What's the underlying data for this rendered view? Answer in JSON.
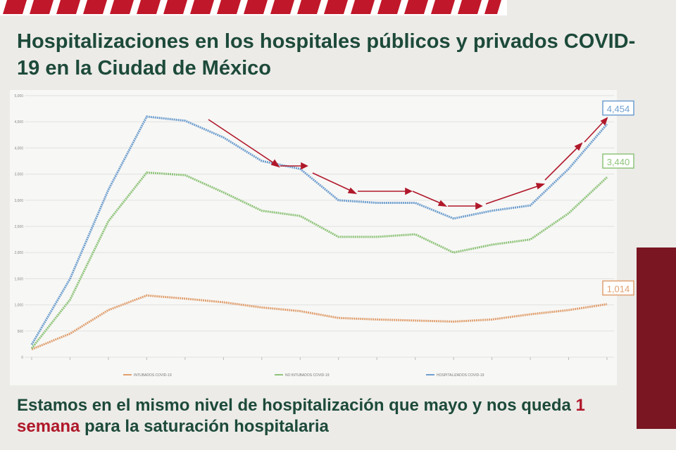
{
  "chart_data": {
    "type": "line",
    "title": "Hospitalizaciones en los hospitales públicos y privados COVID-19 en la Ciudad de México",
    "caption": [
      "Estamos en el mismo nivel de hospitalización que mayo y nos queda ",
      "1 semana",
      " para la saturación hospitalaria"
    ],
    "categories": [
      null,
      null,
      null,
      null,
      null,
      null,
      null,
      null,
      null,
      null,
      null,
      null,
      null,
      null,
      null,
      null
    ],
    "series": [
      {
        "name": "INTUBADOS COVID-19",
        "color": "#e0a070",
        "values": [
          150,
          450,
          900,
          1180,
          1120,
          1050,
          950,
          880,
          750,
          720,
          700,
          680,
          720,
          820,
          900,
          1014
        ],
        "value_labels": [
          null,
          null,
          null,
          null,
          null,
          null,
          null,
          null,
          null,
          null,
          null,
          null,
          null,
          null,
          null,
          "1,014"
        ]
      },
      {
        "name": "NO INTUBADOS COVID-19",
        "color": "#8fc47a",
        "values": [
          170,
          1100,
          2600,
          3530,
          3480,
          3150,
          2800,
          2700,
          2300,
          2300,
          2350,
          2000,
          2150,
          2250,
          2750,
          3440
        ],
        "value_labels": [
          null,
          null,
          null,
          null,
          null,
          null,
          null,
          null,
          null,
          null,
          null,
          null,
          null,
          null,
          null,
          "3,440"
        ]
      },
      {
        "name": "HOSPITALIZADOS COVID-19",
        "color": "#6f9fcf",
        "values": [
          240,
          1500,
          3200,
          4600,
          4520,
          4200,
          3750,
          3600,
          3000,
          2950,
          2950,
          2650,
          2800,
          2900,
          3600,
          4454
        ],
        "value_labels": [
          null,
          null,
          null,
          null,
          null,
          null,
          null,
          null,
          null,
          null,
          null,
          null,
          null,
          null,
          null,
          "4,454"
        ]
      }
    ],
    "ylim": [
      0,
      5000
    ],
    "yticks": [
      0,
      500,
      {
        "value": 1000,
        "label": "1,000"
      },
      {
        "value": 1500,
        "label": "1,500"
      },
      {
        "value": 2000,
        "label": "2,000"
      },
      {
        "value": 2500,
        "label": "2,500"
      },
      {
        "value": 3000,
        "label": "3,000"
      },
      {
        "value": 3500,
        "label": "3,500"
      },
      {
        "value": 4000,
        "label": "4,000"
      },
      {
        "value": 4500,
        "label": "4,500"
      },
      {
        "value": 5000,
        "label": "5,000"
      }
    ],
    "grid": true
  }
}
